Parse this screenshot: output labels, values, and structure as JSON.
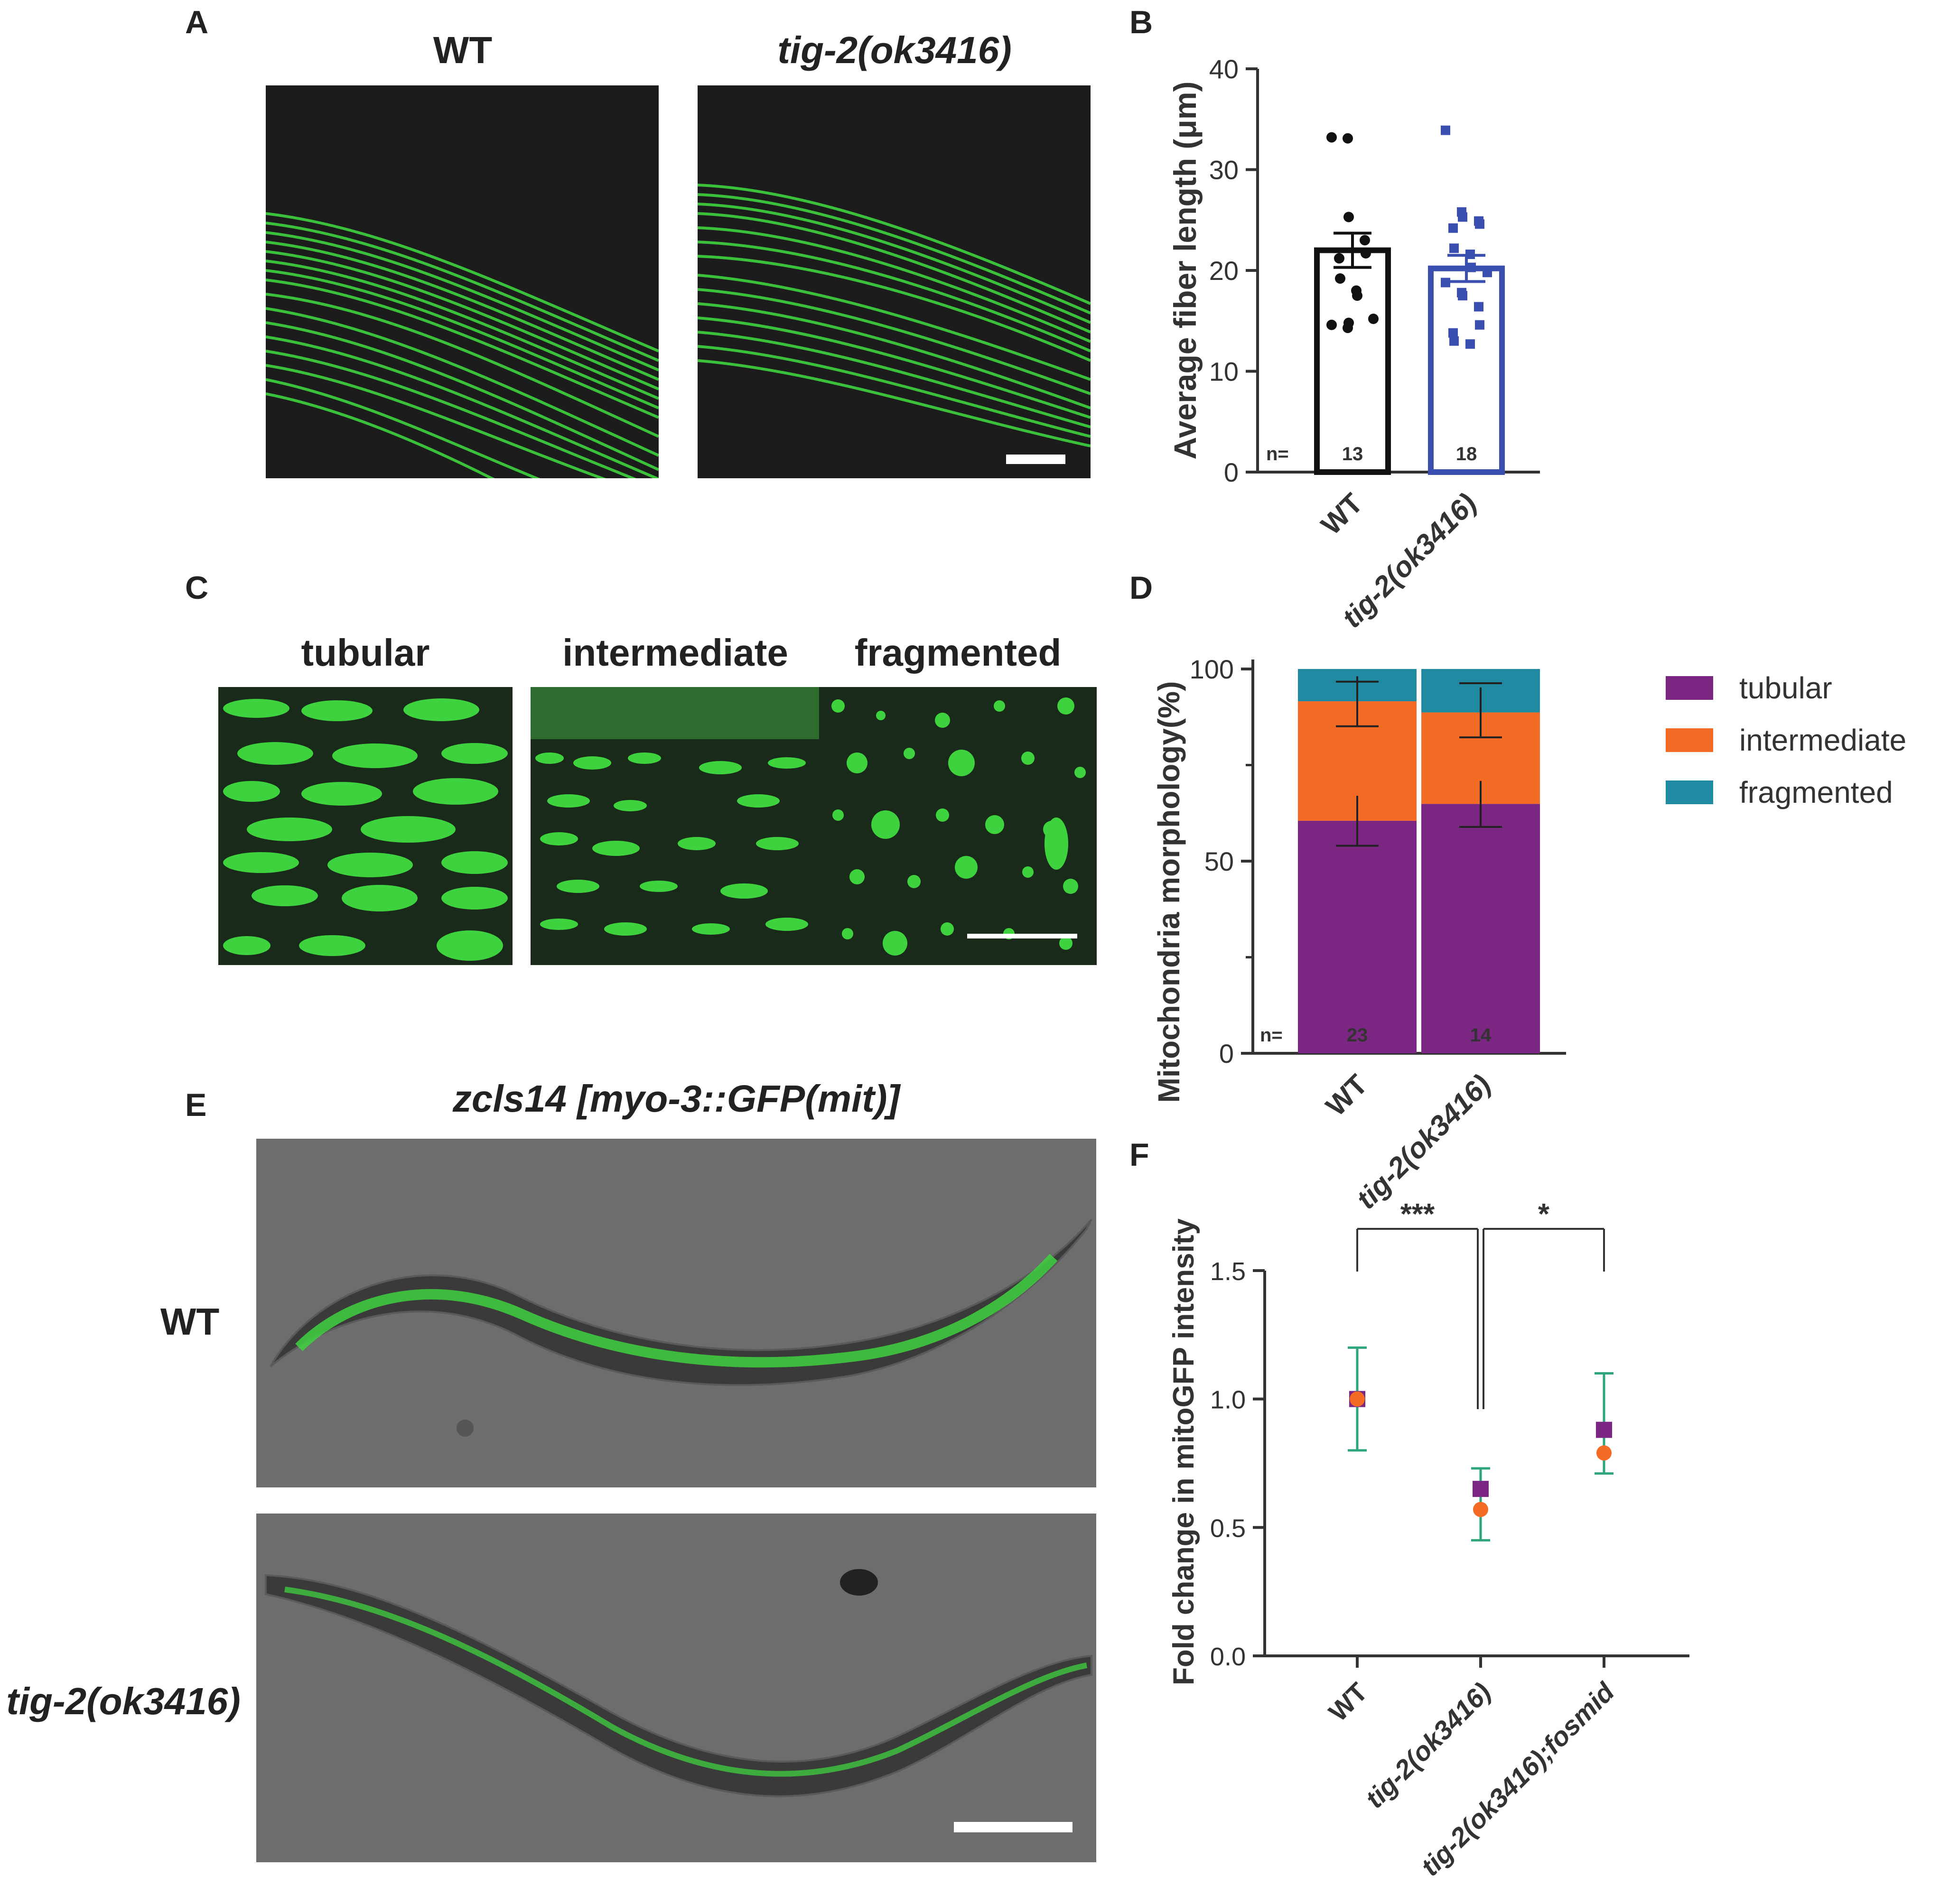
{
  "panel_letters": {
    "a": "A",
    "b": "B",
    "c": "C",
    "d": "D",
    "e": "E",
    "f": "F"
  },
  "panel_a": {
    "label_wt": "WT",
    "label_mutant": "tig-2(ok3416)"
  },
  "panel_c": {
    "label_1": "tubular",
    "label_2": "intermediate",
    "label_3": "fragmented"
  },
  "panel_e": {
    "title": "zcls14 [myo-3::GFP(mit)]",
    "label_wt": "WT",
    "label_mutant": "tig-2(ok3416)"
  },
  "colors": {
    "wt_bar": "#111111",
    "mutant_bar": "#3a4fb0",
    "tubular": "#7b2682",
    "intermediate": "#f46b25",
    "fragmented": "#1f8aa1",
    "errorbar_f": "#2fa67a",
    "micrograph_green": "#3fd23f"
  },
  "chart_data": [
    {
      "panel": "B",
      "type": "bar",
      "categories": [
        "WT",
        "tig-2(ok3416)"
      ],
      "values": [
        22.0,
        20.2
      ],
      "errors": [
        1.7,
        1.3
      ],
      "ylabel": "Average fiber length (μm)",
      "ylim": [
        0,
        40
      ],
      "yticks": [
        0,
        10,
        20,
        30,
        40
      ],
      "n_label": "n=",
      "n_values": [
        "13",
        "18"
      ],
      "points": [
        [
          33.2,
          33.1,
          25.3,
          23.0,
          21.7,
          21.2,
          19.2,
          18.0,
          17.5,
          15.2,
          14.6,
          14.3,
          14.8
        ],
        [
          33.9,
          25.8,
          25.3,
          24.9,
          24.6,
          24.2,
          22.2,
          21.6,
          20.3,
          19.8,
          18.8,
          17.8,
          17.5,
          16.4,
          14.6,
          13.8,
          13.0,
          12.7
        ]
      ]
    },
    {
      "panel": "D",
      "type": "bar",
      "stacked": true,
      "categories": [
        "WT",
        "tig-2(ok3416)"
      ],
      "series": [
        {
          "name": "tubular",
          "values": [
            60.5,
            64.9
          ],
          "errors": [
            6.5,
            6.0
          ]
        },
        {
          "name": "intermediate",
          "values": [
            31.1,
            23.8
          ],
          "errors": [
            6.5,
            6.5
          ]
        },
        {
          "name": "fragmented",
          "values": [
            8.4,
            11.3
          ],
          "errors": [
            3.3,
            3.7
          ]
        }
      ],
      "ylabel": "Mitochondria morphology(%)",
      "ylim": [
        0,
        100
      ],
      "yticks": [
        0,
        50,
        100
      ],
      "n_label": "n=",
      "n_values": [
        "23",
        "14"
      ],
      "legend": "right"
    },
    {
      "panel": "F",
      "type": "scatter",
      "categories": [
        "WT",
        "tig-2(ok3416)",
        "tig-2(ok3416);fosmid"
      ],
      "series": [
        {
          "marker": "square",
          "values": [
            1.0,
            0.65,
            0.88
          ]
        },
        {
          "marker": "circle",
          "values": [
            1.0,
            0.57,
            0.79
          ]
        }
      ],
      "error_low": [
        0.8,
        0.45,
        0.71
      ],
      "error_high": [
        1.2,
        0.73,
        1.1
      ],
      "ylabel": "Fold change in mitoGFP intensity",
      "ylim": [
        0,
        1.5
      ],
      "yticks": [
        "0.0",
        "0.5",
        "1.0",
        "1.5"
      ],
      "significance": [
        {
          "from": 0,
          "to": 1,
          "label": "***"
        },
        {
          "from": 1,
          "to": 2,
          "label": "*"
        }
      ]
    }
  ]
}
